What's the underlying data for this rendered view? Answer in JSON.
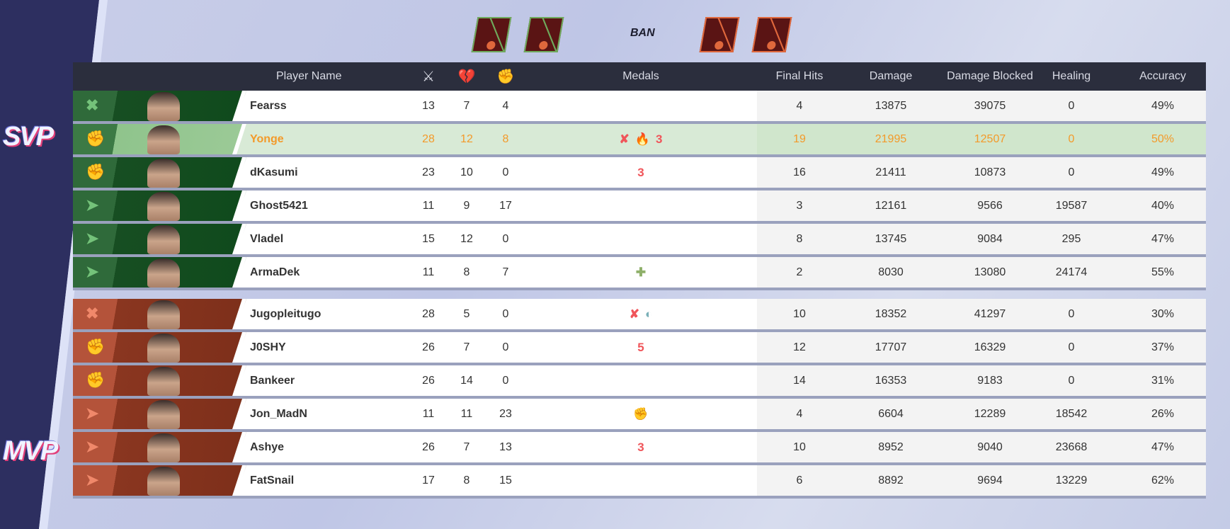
{
  "badges": {
    "svp": "SVP",
    "mvp": "MVP"
  },
  "bans": {
    "label": "BAN",
    "team1": [
      "banned-hero-1",
      "banned-hero-2"
    ],
    "team2": [
      "banned-hero-3",
      "banned-hero-4"
    ]
  },
  "headers": {
    "player_name": "Player Name",
    "kills_icon": "crossed-swords-icon",
    "deaths_icon": "broken-heart-icon",
    "assists_icon": "fist-icon",
    "medals": "Medals",
    "final_hits": "Final Hits",
    "damage": "Damage",
    "damage_blocked": "Damage Blocked",
    "healing": "Healing",
    "accuracy": "Accuracy"
  },
  "colors": {
    "team1": "#174e22",
    "team2": "#8a3620",
    "highlight": "#f39a2a",
    "medal_red": "#f0555a"
  },
  "team1": [
    {
      "role": "vanguard",
      "name": "Fearss",
      "k": "13",
      "d": "7",
      "a": "4",
      "medals": [],
      "final_hits": "4",
      "damage": "13875",
      "blocked": "39075",
      "healing": "0",
      "accuracy": "49%"
    },
    {
      "role": "duelist",
      "name": "Yonge",
      "k": "28",
      "d": "12",
      "a": "8",
      "medals": [
        "✘",
        "🔥",
        "3"
      ],
      "final_hits": "19",
      "damage": "21995",
      "blocked": "12507",
      "healing": "0",
      "accuracy": "50%",
      "highlight": true
    },
    {
      "role": "duelist",
      "name": "dKasumi",
      "k": "23",
      "d": "10",
      "a": "0",
      "medals": [
        "3"
      ],
      "final_hits": "16",
      "damage": "21411",
      "blocked": "10873",
      "healing": "0",
      "accuracy": "49%"
    },
    {
      "role": "strategist",
      "name": "Ghost5421",
      "k": "11",
      "d": "9",
      "a": "17",
      "medals": [],
      "final_hits": "3",
      "damage": "12161",
      "blocked": "9566",
      "healing": "19587",
      "accuracy": "40%"
    },
    {
      "role": "strategist",
      "name": "Vladel",
      "k": "15",
      "d": "12",
      "a": "0",
      "medals": [],
      "final_hits": "8",
      "damage": "13745",
      "blocked": "9084",
      "healing": "295",
      "accuracy": "47%"
    },
    {
      "role": "strategist",
      "name": "ArmaDek",
      "k": "11",
      "d": "8",
      "a": "7",
      "medals": [
        "✚"
      ],
      "final_hits": "2",
      "damage": "8030",
      "blocked": "13080",
      "healing": "24174",
      "accuracy": "55%"
    }
  ],
  "team2": [
    {
      "role": "vanguard",
      "name": "Jugopleitugo",
      "k": "28",
      "d": "5",
      "a": "0",
      "medals": [
        "✘",
        "◐"
      ],
      "final_hits": "10",
      "damage": "18352",
      "blocked": "41297",
      "healing": "0",
      "accuracy": "30%"
    },
    {
      "role": "duelist",
      "name": "J0SHY",
      "k": "26",
      "d": "7",
      "a": "0",
      "medals": [
        "5"
      ],
      "final_hits": "12",
      "damage": "17707",
      "blocked": "16329",
      "healing": "0",
      "accuracy": "37%"
    },
    {
      "role": "duelist",
      "name": "Bankeer",
      "k": "26",
      "d": "14",
      "a": "0",
      "medals": [],
      "final_hits": "14",
      "damage": "16353",
      "blocked": "9183",
      "healing": "0",
      "accuracy": "31%"
    },
    {
      "role": "strategist",
      "name": "Jon_MadN",
      "k": "11",
      "d": "11",
      "a": "23",
      "medals": [
        "✊"
      ],
      "final_hits": "4",
      "damage": "6604",
      "blocked": "12289",
      "healing": "18542",
      "accuracy": "26%"
    },
    {
      "role": "strategist",
      "name": "Ashye",
      "k": "26",
      "d": "7",
      "a": "13",
      "medals": [
        "3"
      ],
      "final_hits": "10",
      "damage": "8952",
      "blocked": "9040",
      "healing": "23668",
      "accuracy": "47%"
    },
    {
      "role": "strategist",
      "name": "FatSnail",
      "k": "17",
      "d": "8",
      "a": "15",
      "medals": [],
      "final_hits": "6",
      "damage": "8892",
      "blocked": "9694",
      "healing": "13229",
      "accuracy": "62%"
    }
  ]
}
